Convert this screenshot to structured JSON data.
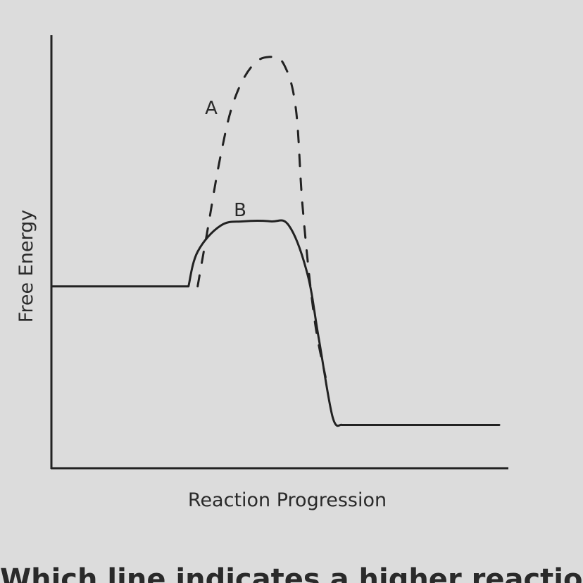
{
  "chart_data": {
    "type": "line",
    "title": "",
    "xlabel": "Reaction Progression",
    "ylabel": "Free Energy",
    "xlim": [
      0,
      10
    ],
    "ylim": [
      0,
      10
    ],
    "grid": false,
    "legend": "none",
    "series": [
      {
        "name": "A",
        "style": "dashed",
        "x": [
          3.2,
          3.4,
          3.7,
          4.0,
          4.4,
          4.8,
          5.1,
          5.35,
          5.5,
          5.75,
          6.0
        ],
        "y": [
          4.2,
          5.4,
          7.2,
          8.5,
          9.3,
          9.5,
          9.3,
          8.3,
          6.0,
          3.5,
          2.1
        ]
      },
      {
        "name": "B",
        "style": "solid",
        "x": [
          0.0,
          3.0,
          3.2,
          3.7,
          4.2,
          4.8,
          5.2,
          5.6,
          5.85,
          6.15,
          6.35,
          9.8
        ],
        "y": [
          4.2,
          4.2,
          5.0,
          5.6,
          5.7,
          5.7,
          5.6,
          4.5,
          3.0,
          1.2,
          1.0,
          1.0
        ]
      }
    ],
    "annotations": [
      {
        "text": "A",
        "series": "A"
      },
      {
        "text": "B",
        "series": "B"
      }
    ],
    "colors": {
      "axis": "#222222",
      "line": "#222222",
      "background": "#dcdcdc"
    }
  },
  "footer_text": "Which line indicates a higher reaction rate"
}
